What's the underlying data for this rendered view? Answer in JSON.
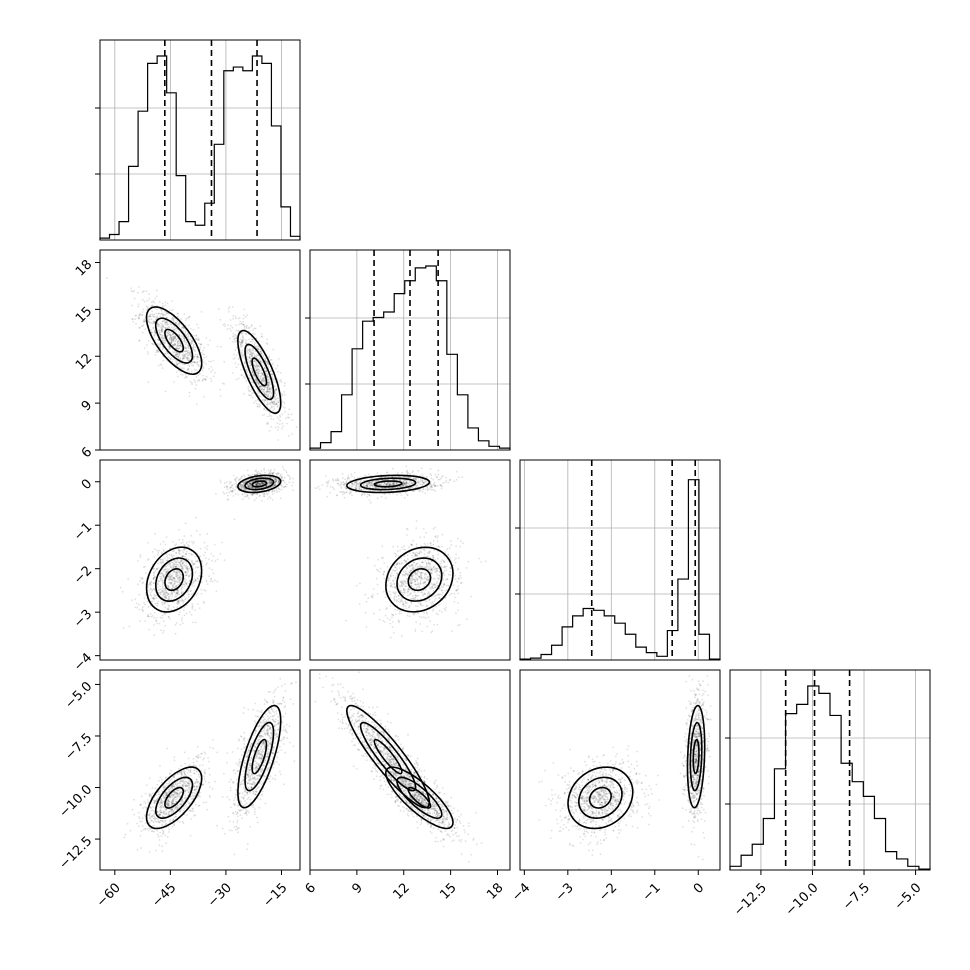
{
  "chart_data": {
    "type": "corner",
    "grid": true,
    "parameters": [
      {
        "ticks": [
          -60,
          -45,
          -30,
          -15
        ],
        "tick_labels": [
          "−60",
          "−45",
          "−30",
          "−15"
        ],
        "range": [
          -64,
          -10
        ]
      },
      {
        "ticks": [
          6,
          9,
          12,
          15,
          18
        ],
        "tick_labels": [
          "6",
          "9",
          "12",
          "15",
          "18"
        ],
        "range": [
          6,
          18.8
        ]
      },
      {
        "ticks": [
          -4,
          -3,
          -2,
          -1,
          0
        ],
        "tick_labels": [
          "−4",
          "−3",
          "−2",
          "−1",
          "0"
        ],
        "range": [
          -4.1,
          0.5
        ]
      },
      {
        "ticks": [
          -12.5,
          -10.0,
          -7.5,
          -5.0
        ],
        "tick_labels": [
          "−12.5",
          "−10.0",
          "−7.5",
          "−5.0"
        ],
        "range": [
          -14.0,
          -4.3
        ]
      }
    ],
    "histograms": [
      {
        "counts": [
          0.01,
          0.03,
          0.1,
          0.4,
          0.7,
          0.96,
          1.0,
          0.8,
          0.35,
          0.1,
          0.08,
          0.2,
          0.52,
          0.92,
          0.94,
          0.92,
          1.0,
          0.96,
          0.62,
          0.18,
          0.02
        ],
        "quantiles": [
          -46.5,
          -33.9,
          -21.6
        ]
      },
      {
        "counts": [
          0.01,
          0.04,
          0.1,
          0.3,
          0.55,
          0.7,
          0.72,
          0.75,
          0.85,
          0.92,
          0.99,
          1.0,
          0.92,
          0.52,
          0.3,
          0.12,
          0.05,
          0.02,
          0.01
        ],
        "quantiles": [
          10.1,
          12.4,
          14.2
        ]
      },
      {
        "counts": [
          0.005,
          0.01,
          0.03,
          0.08,
          0.18,
          0.24,
          0.28,
          0.27,
          0.24,
          0.2,
          0.14,
          0.07,
          0.04,
          0.02,
          0.16,
          0.44,
          0.98,
          0.14,
          0.005
        ],
        "quantiles": [
          -2.45,
          -0.6,
          -0.07
        ]
      },
      {
        "counts": [
          0.02,
          0.08,
          0.14,
          0.28,
          0.55,
          0.85,
          0.9,
          1.0,
          0.96,
          0.84,
          0.58,
          0.48,
          0.4,
          0.28,
          0.1,
          0.06,
          0.02,
          0.005
        ],
        "quantiles": [
          -11.3,
          -9.9,
          -8.2
        ]
      }
    ]
  }
}
